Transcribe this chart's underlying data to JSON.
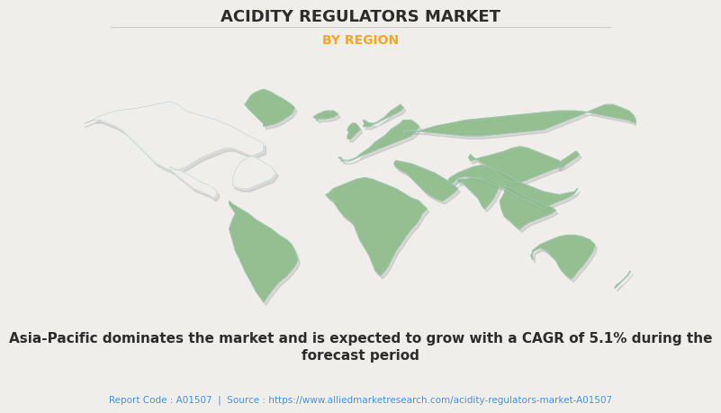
{
  "title": "ACIDITY REGULATORS MARKET",
  "subtitle": "BY REGION",
  "subtitle_color": "#F5A623",
  "title_color": "#2c2c2c",
  "background_color": "#f0eeeb",
  "map_default_color": "#8fbc8b",
  "map_highlight_color": "#f0eeeb",
  "map_edge_color": "#a8cece",
  "map_shadow_color": "#aaaaaa",
  "description_line1": "Asia-Pacific dominates the market and is expected to grow with a CAGR of 5.1% during the",
  "description_line2": "forecast period",
  "footer": "Report Code : A01507  |  Source : https://www.alliedmarketresearch.com/acidity-regulators-market-A01507",
  "footer_color": "#4a90d9",
  "description_color": "#2c2c2c",
  "title_fontsize": 13,
  "subtitle_fontsize": 10,
  "description_fontsize": 11,
  "footer_fontsize": 7.5
}
